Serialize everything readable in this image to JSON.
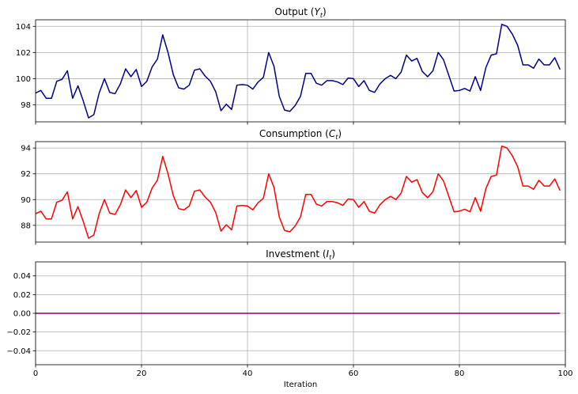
{
  "chart_data": [
    {
      "type": "line",
      "title": "Output (Y_t)",
      "title_main": "Output (",
      "title_sym": "Y",
      "title_sub": "t",
      "title_end": ")",
      "xlabel": "",
      "ylabel": "",
      "xlim": [
        0,
        100
      ],
      "ylim": [
        96.7,
        104.5
      ],
      "xticks": [
        0,
        20,
        40,
        60,
        80,
        100
      ],
      "yticks": [
        98,
        100,
        102,
        104
      ],
      "show_xtick_labels": false,
      "grid": true,
      "color": "#00008b",
      "series": [
        {
          "x": [
            0,
            1,
            2,
            3,
            4,
            5,
            6,
            7,
            8,
            9,
            10,
            11,
            12,
            13,
            14,
            15,
            16,
            17,
            18,
            19,
            20,
            21,
            22,
            23,
            24,
            25,
            26,
            27,
            28,
            29,
            30,
            31,
            32,
            33,
            34,
            35,
            36,
            37,
            38,
            39,
            40,
            41,
            42,
            43,
            44,
            45,
            46,
            47,
            48,
            49,
            50,
            51,
            52,
            53,
            54,
            55,
            56,
            57,
            58,
            59,
            60,
            61,
            62,
            63,
            64,
            65,
            66,
            67,
            68,
            69,
            70,
            71,
            72,
            73,
            74,
            75,
            76,
            77,
            78,
            79,
            80,
            81,
            82,
            83,
            84,
            85,
            86,
            87,
            88,
            89,
            90,
            91,
            92,
            93,
            94,
            95,
            96,
            97,
            98,
            99
          ],
          "values": [
            98.9,
            99.1,
            98.5,
            98.5,
            99.8,
            99.95,
            100.6,
            98.5,
            99.45,
            98.3,
            97.0,
            97.25,
            98.9,
            100.0,
            98.95,
            98.85,
            99.6,
            100.75,
            100.15,
            100.7,
            99.4,
            99.8,
            100.9,
            101.5,
            103.35,
            102.0,
            100.3,
            99.3,
            99.2,
            99.5,
            100.65,
            100.75,
            100.2,
            99.8,
            99.0,
            97.55,
            98.05,
            97.65,
            99.5,
            99.55,
            99.5,
            99.2,
            99.75,
            100.1,
            102.0,
            100.95,
            98.65,
            97.6,
            97.5,
            97.95,
            98.65,
            100.4,
            100.4,
            99.65,
            99.5,
            99.85,
            99.85,
            99.75,
            99.55,
            100.05,
            100.0,
            99.4,
            99.85,
            99.1,
            98.95,
            99.6,
            100.0,
            100.25,
            100.0,
            100.5,
            101.8,
            101.35,
            101.55,
            100.55,
            100.15,
            100.6,
            102.0,
            101.45,
            100.25,
            99.05,
            99.1,
            99.25,
            99.05,
            100.15,
            99.1,
            100.85,
            101.8,
            101.9,
            104.15,
            104.0,
            103.4,
            102.55,
            101.05,
            101.05,
            100.8,
            101.5,
            101.05,
            101.05,
            101.6,
            100.7
          ]
        }
      ]
    },
    {
      "type": "line",
      "title": "Consumption (C_t)",
      "title_main": "Consumption (",
      "title_sym": "C",
      "title_sub": "t",
      "title_end": ")",
      "xlabel": "",
      "ylabel": "",
      "xlim": [
        0,
        100
      ],
      "ylim": [
        86.7,
        94.5
      ],
      "xticks": [
        0,
        20,
        40,
        60,
        80,
        100
      ],
      "yticks": [
        88,
        90,
        92,
        94
      ],
      "show_xtick_labels": false,
      "grid": true,
      "color": "#ff0000",
      "series": [
        {
          "x": [
            0,
            1,
            2,
            3,
            4,
            5,
            6,
            7,
            8,
            9,
            10,
            11,
            12,
            13,
            14,
            15,
            16,
            17,
            18,
            19,
            20,
            21,
            22,
            23,
            24,
            25,
            26,
            27,
            28,
            29,
            30,
            31,
            32,
            33,
            34,
            35,
            36,
            37,
            38,
            39,
            40,
            41,
            42,
            43,
            44,
            45,
            46,
            47,
            48,
            49,
            50,
            51,
            52,
            53,
            54,
            55,
            56,
            57,
            58,
            59,
            60,
            61,
            62,
            63,
            64,
            65,
            66,
            67,
            68,
            69,
            70,
            71,
            72,
            73,
            74,
            75,
            76,
            77,
            78,
            79,
            80,
            81,
            82,
            83,
            84,
            85,
            86,
            87,
            88,
            89,
            90,
            91,
            92,
            93,
            94,
            95,
            96,
            97,
            98,
            99
          ],
          "values": [
            88.9,
            89.1,
            88.5,
            88.5,
            89.8,
            89.95,
            90.6,
            88.5,
            89.45,
            88.3,
            87.0,
            87.25,
            88.9,
            90.0,
            88.95,
            88.85,
            89.6,
            90.75,
            90.15,
            90.7,
            89.4,
            89.8,
            90.9,
            91.5,
            93.35,
            92.0,
            90.3,
            89.3,
            89.2,
            89.5,
            90.65,
            90.75,
            90.2,
            89.8,
            89.0,
            87.55,
            88.05,
            87.65,
            89.5,
            89.55,
            89.5,
            89.2,
            89.75,
            90.1,
            92.0,
            90.95,
            88.65,
            87.6,
            87.5,
            87.95,
            88.65,
            90.4,
            90.4,
            89.65,
            89.5,
            89.85,
            89.85,
            89.75,
            89.55,
            90.05,
            90.0,
            89.4,
            89.85,
            89.1,
            88.95,
            89.6,
            90.0,
            90.25,
            90.0,
            90.5,
            91.8,
            91.35,
            91.55,
            90.55,
            90.15,
            90.6,
            92.0,
            91.45,
            90.25,
            89.05,
            89.1,
            89.25,
            89.05,
            90.15,
            89.1,
            90.85,
            91.8,
            91.9,
            94.15,
            94.0,
            93.4,
            92.55,
            91.05,
            91.05,
            90.8,
            91.5,
            91.05,
            91.05,
            91.6,
            90.7
          ]
        }
      ]
    },
    {
      "type": "line",
      "title": "Investment (I_t)",
      "title_main": "Investment (",
      "title_sym": "I",
      "title_sub": "t",
      "title_end": ")",
      "xlabel": "Iteration",
      "ylabel": "",
      "xlim": [
        0,
        100
      ],
      "ylim": [
        -0.055,
        0.055
      ],
      "xticks": [
        0,
        20,
        40,
        60,
        80,
        100
      ],
      "xtick_labels": [
        "0",
        "20",
        "40",
        "60",
        "80",
        "100"
      ],
      "yticks": [
        -0.04,
        -0.02,
        0.0,
        0.02,
        0.04
      ],
      "ytick_labels": [
        "−0.04",
        "−0.02",
        "0.00",
        "0.02",
        "0.04"
      ],
      "show_xtick_labels": true,
      "grid": true,
      "color": "#800080",
      "series": [
        {
          "x": [
            0,
            99
          ],
          "values": [
            0.0,
            0.0
          ]
        }
      ]
    }
  ]
}
